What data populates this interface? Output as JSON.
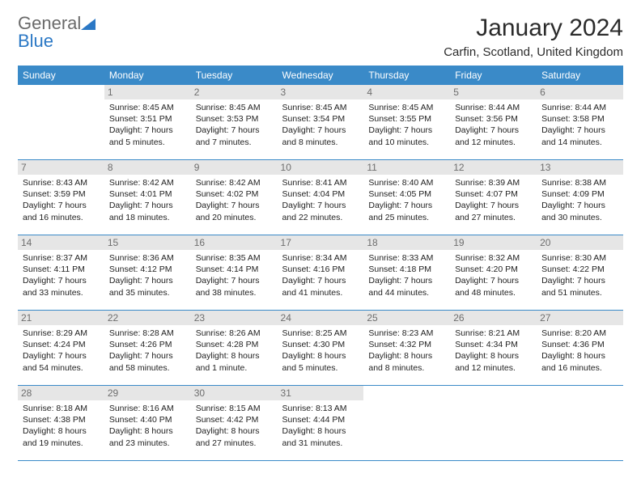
{
  "brand": {
    "word1": "General",
    "word2": "Blue"
  },
  "header": {
    "title": "January 2024",
    "location": "Carfin, Scotland, United Kingdom"
  },
  "colors": {
    "header_bg": "#3a8ac8",
    "daynum_bg": "#e6e6e6",
    "daynum_text": "#6e6e6e",
    "rule": "#3a8ac8",
    "brand_gray": "#6a6a6a",
    "brand_blue": "#2b78c5"
  },
  "weekdays": [
    "Sunday",
    "Monday",
    "Tuesday",
    "Wednesday",
    "Thursday",
    "Friday",
    "Saturday"
  ],
  "weeks": [
    [
      null,
      {
        "n": "1",
        "sunrise": "Sunrise: 8:45 AM",
        "sunset": "Sunset: 3:51 PM",
        "daylight": "Daylight: 7 hours and 5 minutes."
      },
      {
        "n": "2",
        "sunrise": "Sunrise: 8:45 AM",
        "sunset": "Sunset: 3:53 PM",
        "daylight": "Daylight: 7 hours and 7 minutes."
      },
      {
        "n": "3",
        "sunrise": "Sunrise: 8:45 AM",
        "sunset": "Sunset: 3:54 PM",
        "daylight": "Daylight: 7 hours and 8 minutes."
      },
      {
        "n": "4",
        "sunrise": "Sunrise: 8:45 AM",
        "sunset": "Sunset: 3:55 PM",
        "daylight": "Daylight: 7 hours and 10 minutes."
      },
      {
        "n": "5",
        "sunrise": "Sunrise: 8:44 AM",
        "sunset": "Sunset: 3:56 PM",
        "daylight": "Daylight: 7 hours and 12 minutes."
      },
      {
        "n": "6",
        "sunrise": "Sunrise: 8:44 AM",
        "sunset": "Sunset: 3:58 PM",
        "daylight": "Daylight: 7 hours and 14 minutes."
      }
    ],
    [
      {
        "n": "7",
        "sunrise": "Sunrise: 8:43 AM",
        "sunset": "Sunset: 3:59 PM",
        "daylight": "Daylight: 7 hours and 16 minutes."
      },
      {
        "n": "8",
        "sunrise": "Sunrise: 8:42 AM",
        "sunset": "Sunset: 4:01 PM",
        "daylight": "Daylight: 7 hours and 18 minutes."
      },
      {
        "n": "9",
        "sunrise": "Sunrise: 8:42 AM",
        "sunset": "Sunset: 4:02 PM",
        "daylight": "Daylight: 7 hours and 20 minutes."
      },
      {
        "n": "10",
        "sunrise": "Sunrise: 8:41 AM",
        "sunset": "Sunset: 4:04 PM",
        "daylight": "Daylight: 7 hours and 22 minutes."
      },
      {
        "n": "11",
        "sunrise": "Sunrise: 8:40 AM",
        "sunset": "Sunset: 4:05 PM",
        "daylight": "Daylight: 7 hours and 25 minutes."
      },
      {
        "n": "12",
        "sunrise": "Sunrise: 8:39 AM",
        "sunset": "Sunset: 4:07 PM",
        "daylight": "Daylight: 7 hours and 27 minutes."
      },
      {
        "n": "13",
        "sunrise": "Sunrise: 8:38 AM",
        "sunset": "Sunset: 4:09 PM",
        "daylight": "Daylight: 7 hours and 30 minutes."
      }
    ],
    [
      {
        "n": "14",
        "sunrise": "Sunrise: 8:37 AM",
        "sunset": "Sunset: 4:11 PM",
        "daylight": "Daylight: 7 hours and 33 minutes."
      },
      {
        "n": "15",
        "sunrise": "Sunrise: 8:36 AM",
        "sunset": "Sunset: 4:12 PM",
        "daylight": "Daylight: 7 hours and 35 minutes."
      },
      {
        "n": "16",
        "sunrise": "Sunrise: 8:35 AM",
        "sunset": "Sunset: 4:14 PM",
        "daylight": "Daylight: 7 hours and 38 minutes."
      },
      {
        "n": "17",
        "sunrise": "Sunrise: 8:34 AM",
        "sunset": "Sunset: 4:16 PM",
        "daylight": "Daylight: 7 hours and 41 minutes."
      },
      {
        "n": "18",
        "sunrise": "Sunrise: 8:33 AM",
        "sunset": "Sunset: 4:18 PM",
        "daylight": "Daylight: 7 hours and 44 minutes."
      },
      {
        "n": "19",
        "sunrise": "Sunrise: 8:32 AM",
        "sunset": "Sunset: 4:20 PM",
        "daylight": "Daylight: 7 hours and 48 minutes."
      },
      {
        "n": "20",
        "sunrise": "Sunrise: 8:30 AM",
        "sunset": "Sunset: 4:22 PM",
        "daylight": "Daylight: 7 hours and 51 minutes."
      }
    ],
    [
      {
        "n": "21",
        "sunrise": "Sunrise: 8:29 AM",
        "sunset": "Sunset: 4:24 PM",
        "daylight": "Daylight: 7 hours and 54 minutes."
      },
      {
        "n": "22",
        "sunrise": "Sunrise: 8:28 AM",
        "sunset": "Sunset: 4:26 PM",
        "daylight": "Daylight: 7 hours and 58 minutes."
      },
      {
        "n": "23",
        "sunrise": "Sunrise: 8:26 AM",
        "sunset": "Sunset: 4:28 PM",
        "daylight": "Daylight: 8 hours and 1 minute."
      },
      {
        "n": "24",
        "sunrise": "Sunrise: 8:25 AM",
        "sunset": "Sunset: 4:30 PM",
        "daylight": "Daylight: 8 hours and 5 minutes."
      },
      {
        "n": "25",
        "sunrise": "Sunrise: 8:23 AM",
        "sunset": "Sunset: 4:32 PM",
        "daylight": "Daylight: 8 hours and 8 minutes."
      },
      {
        "n": "26",
        "sunrise": "Sunrise: 8:21 AM",
        "sunset": "Sunset: 4:34 PM",
        "daylight": "Daylight: 8 hours and 12 minutes."
      },
      {
        "n": "27",
        "sunrise": "Sunrise: 8:20 AM",
        "sunset": "Sunset: 4:36 PM",
        "daylight": "Daylight: 8 hours and 16 minutes."
      }
    ],
    [
      {
        "n": "28",
        "sunrise": "Sunrise: 8:18 AM",
        "sunset": "Sunset: 4:38 PM",
        "daylight": "Daylight: 8 hours and 19 minutes."
      },
      {
        "n": "29",
        "sunrise": "Sunrise: 8:16 AM",
        "sunset": "Sunset: 4:40 PM",
        "daylight": "Daylight: 8 hours and 23 minutes."
      },
      {
        "n": "30",
        "sunrise": "Sunrise: 8:15 AM",
        "sunset": "Sunset: 4:42 PM",
        "daylight": "Daylight: 8 hours and 27 minutes."
      },
      {
        "n": "31",
        "sunrise": "Sunrise: 8:13 AM",
        "sunset": "Sunset: 4:44 PM",
        "daylight": "Daylight: 8 hours and 31 minutes."
      },
      null,
      null,
      null
    ]
  ]
}
